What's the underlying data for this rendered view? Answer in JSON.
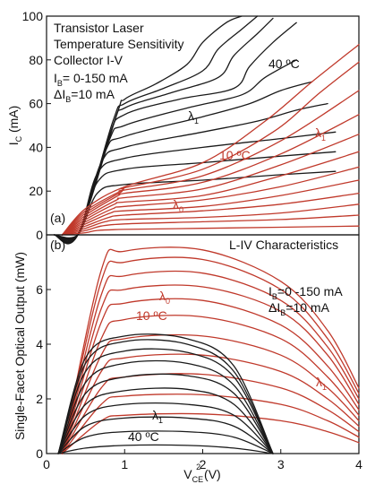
{
  "chart_data": [
    {
      "type": "line",
      "panel_label": "(a)",
      "title": "",
      "annotation_lines": [
        "Transistor Laser",
        "Temperature Sensitivity",
        "Collector I-V"
      ],
      "ib_range": {
        "main": "I",
        "sub": "B",
        "value": "= 0-150 mA"
      },
      "ib_step": {
        "main": "ΔI",
        "sub": "B",
        "value": "=10 mA"
      },
      "ylabel": {
        "main": "I",
        "sub": "C",
        "unit": " (mA)"
      },
      "xlim": [
        0,
        4
      ],
      "ylim": [
        0,
        100
      ],
      "yticks": [
        "0",
        "20",
        "40",
        "60",
        "80",
        "100"
      ],
      "labels": {
        "temp_hot": "40 ºC",
        "temp_cold": "10 ºC",
        "lambda_hot": {
          "main": "λ",
          "sub": "1"
        },
        "lambda_cold_1": {
          "main": "λ",
          "sub": "1"
        },
        "lambda_cold_0": {
          "main": "λ",
          "sub": "0"
        }
      },
      "series": [
        {
          "color": "#1a1a1a",
          "curves": [
            {
              "x": [
                0.1,
                0.4,
                0.65,
                1.0,
                2.0,
                3.0,
                3.7
              ],
              "y": [
                0,
                0,
                19,
                23,
                25,
                27.5,
                29
              ]
            },
            {
              "x": [
                0.1,
                0.4,
                0.65,
                1.0,
                2.0,
                3.0,
                3.7
              ],
              "y": [
                0,
                0,
                24,
                30,
                33,
                36,
                38
              ]
            },
            {
              "x": [
                0.1,
                0.4,
                0.65,
                1.0,
                2.0,
                3.0,
                3.7
              ],
              "y": [
                0,
                0,
                28,
                35,
                40,
                44,
                47
              ]
            },
            {
              "x": [
                0.1,
                0.4,
                0.7,
                1.0,
                2.0,
                2.7,
                3.2,
                3.6
              ],
              "y": [
                0,
                0,
                33,
                40,
                47,
                52,
                57,
                60
              ]
            },
            {
              "x": [
                0.1,
                0.4,
                0.75,
                1.0,
                2.0,
                2.6,
                3.0,
                3.4
              ],
              "y": [
                0,
                0,
                38,
                45,
                54,
                60,
                66,
                70
              ]
            },
            {
              "x": [
                0.1,
                0.4,
                0.8,
                1.0,
                1.8,
                2.5,
                2.8,
                3.2
              ],
              "y": [
                0,
                0,
                43,
                50,
                58,
                64,
                72,
                80
              ]
            },
            {
              "x": [
                0.1,
                0.4,
                0.8,
                1.0,
                1.7,
                2.4,
                2.6,
                2.9,
                3.2
              ],
              "y": [
                0,
                0,
                45,
                55,
                62,
                67,
                77,
                88,
                97
              ]
            },
            {
              "x": [
                0.1,
                0.4,
                0.85,
                1.0,
                1.6,
                2.2,
                2.4,
                2.7,
                2.9
              ],
              "y": [
                0,
                0,
                50,
                58,
                65,
                72,
                82,
                92,
                99
              ]
            },
            {
              "x": [
                0.1,
                0.4,
                0.85,
                1.0,
                1.5,
                2.0,
                2.2,
                2.5,
                2.7
              ],
              "y": [
                0,
                0,
                52,
                60,
                67,
                75,
                85,
                94,
                100
              ]
            },
            {
              "x": [
                0.1,
                0.4,
                0.9,
                1.0,
                1.4,
                1.8,
                2.0,
                2.3,
                2.5
              ],
              "y": [
                0,
                0,
                55,
                62,
                69,
                78,
                88,
                97,
                100
              ]
            }
          ]
        },
        {
          "color": "#c0392b",
          "curves": [
            {
              "x": [
                0.2,
                0.5,
                0.65,
                1.0,
                2.0,
                3.0,
                4.0
              ],
              "y": [
                0,
                1,
                2,
                2.5,
                3,
                3.5,
                4
              ]
            },
            {
              "x": [
                0.2,
                0.5,
                0.7,
                1.0,
                2.0,
                3.0,
                4.0
              ],
              "y": [
                0,
                2,
                4,
                5,
                6,
                7,
                9
              ]
            },
            {
              "x": [
                0.2,
                0.5,
                0.75,
                1.0,
                2.0,
                3.0,
                4.0
              ],
              "y": [
                0,
                3,
                6,
                7,
                8,
                10,
                14
              ]
            },
            {
              "x": [
                0.2,
                0.5,
                0.8,
                1.0,
                2.0,
                3.0,
                4.0
              ],
              "y": [
                0,
                4,
                8,
                9,
                11,
                14,
                19
              ]
            },
            {
              "x": [
                0.2,
                0.5,
                0.82,
                1.0,
                2.0,
                3.0,
                4.0
              ],
              "y": [
                0,
                5,
                10,
                11,
                13,
                18,
                25
              ]
            },
            {
              "x": [
                0.2,
                0.5,
                0.85,
                1.0,
                2.0,
                3.0,
                4.0
              ],
              "y": [
                0,
                6,
                12,
                13,
                16,
                22,
                31
              ]
            },
            {
              "x": [
                0.2,
                0.5,
                0.87,
                1.0,
                2.0,
                3.0,
                4.0
              ],
              "y": [
                0,
                7,
                14,
                15,
                18,
                27,
                38
              ]
            },
            {
              "x": [
                0.2,
                0.5,
                0.9,
                1.0,
                2.0,
                3.0,
                4.0
              ],
              "y": [
                0,
                8,
                16,
                17,
                21,
                32,
                46
              ]
            },
            {
              "x": [
                0.2,
                0.5,
                0.92,
                1.0,
                2.0,
                3.0,
                4.0
              ],
              "y": [
                0,
                9,
                18,
                19,
                24,
                37,
                55
              ]
            },
            {
              "x": [
                0.2,
                0.5,
                0.95,
                1.0,
                2.0,
                3.0,
                4.0
              ],
              "y": [
                0,
                10,
                19.5,
                20.5,
                27,
                43,
                66
              ]
            },
            {
              "x": [
                0.2,
                0.5,
                0.97,
                1.0,
                2.0,
                2.9,
                3.5,
                4.0
              ],
              "y": [
                0,
                11,
                20.5,
                21.5,
                30,
                47,
                65,
                79
              ]
            },
            {
              "x": [
                0.2,
                0.5,
                1.0,
                2.0,
                2.8,
                3.4,
                4.0
              ],
              "y": [
                0,
                12,
                22,
                33,
                52,
                70,
                87
              ]
            }
          ]
        }
      ]
    },
    {
      "type": "line",
      "panel_label": "(b)",
      "title": "L-IV Characteristics",
      "ylabel": "Single-Facet Optical Output (mW)",
      "xlabel": {
        "main": "V",
        "sub": "CE",
        "unit": " (V)",
        "sup": "2"
      },
      "ib_range": {
        "main": "I",
        "sub": "B",
        "value": "=0 -150 mA"
      },
      "ib_step": {
        "main": "ΔI",
        "sub": "B",
        "value": "=10 mA"
      },
      "xlim": [
        0,
        4
      ],
      "ylim": [
        0,
        8
      ],
      "xticks": [
        "0",
        "1",
        "2",
        "3",
        "4"
      ],
      "yticks": [
        "0",
        "2",
        "4",
        "6"
      ],
      "labels": {
        "lambda_cold_0": {
          "main": "λ",
          "sub": "0"
        },
        "temp_cold": "10 ºC",
        "lambda_cold_1": {
          "main": "λ",
          "sub": "1"
        },
        "lambda_hot": {
          "main": "λ",
          "sub": "1"
        },
        "temp_hot": "40 ºC"
      },
      "series": [
        {
          "color": "#c0392b",
          "curves": [
            {
              "x": [
                0.2,
                0.7,
                1.0,
                2.0,
                3.0,
                3.6,
                4.0
              ],
              "y": [
                0,
                1.2,
                1.4,
                1.45,
                1.2,
                0.8,
                0.4
              ]
            },
            {
              "x": [
                0.2,
                0.7,
                1.0,
                2.0,
                3.0,
                3.6,
                4.0
              ],
              "y": [
                0,
                1.8,
                2.1,
                2.15,
                1.8,
                1.2,
                0.6
              ]
            },
            {
              "x": [
                0.2,
                0.7,
                1.0,
                2.0,
                3.0,
                3.6,
                4.0
              ],
              "y": [
                0,
                2.4,
                2.8,
                2.9,
                2.4,
                1.6,
                0.8
              ]
            },
            {
              "x": [
                0.2,
                0.7,
                1.0,
                2.0,
                3.0,
                3.6,
                4.0
              ],
              "y": [
                0,
                3.0,
                3.5,
                3.6,
                3.0,
                2.0,
                1.0
              ]
            },
            {
              "x": [
                0.2,
                0.7,
                1.0,
                2.0,
                3.0,
                3.6,
                4.0
              ],
              "y": [
                0,
                3.6,
                4.2,
                4.3,
                3.6,
                2.4,
                1.2
              ]
            },
            {
              "x": [
                0.2,
                0.7,
                1.0,
                2.0,
                3.0,
                3.6,
                4.0
              ],
              "y": [
                0,
                4.2,
                4.9,
                5.0,
                4.2,
                2.8,
                1.4
              ]
            },
            {
              "x": [
                0.2,
                0.7,
                1.0,
                2.0,
                3.0,
                3.6,
                4.0
              ],
              "y": [
                0,
                4.8,
                5.5,
                5.6,
                4.7,
                3.2,
                1.6
              ]
            },
            {
              "x": [
                0.2,
                0.7,
                1.0,
                2.0,
                3.0,
                3.6,
                4.0
              ],
              "y": [
                0,
                5.3,
                6.0,
                6.1,
                5.2,
                3.6,
                1.8
              ]
            },
            {
              "x": [
                0.2,
                0.7,
                1.0,
                2.0,
                3.0,
                3.6,
                4.0
              ],
              "y": [
                0,
                5.8,
                6.5,
                6.6,
                5.6,
                3.9,
                2.0
              ]
            },
            {
              "x": [
                0.2,
                0.7,
                1.0,
                2.0,
                3.0,
                3.6,
                4.0
              ],
              "y": [
                0,
                6.3,
                7.0,
                7.1,
                6.0,
                4.2,
                2.2
              ]
            },
            {
              "x": [
                0.2,
                0.7,
                1.0,
                2.0,
                3.0,
                3.6,
                4.0
              ],
              "y": [
                0,
                6.7,
                7.4,
                7.45,
                6.3,
                4.5,
                2.4
              ]
            }
          ]
        },
        {
          "color": "#1a1a1a",
          "curves": [
            {
              "x": [
                0.15,
                0.5,
                1.0,
                1.8,
                2.4,
                2.9
              ],
              "y": [
                0,
                0.2,
                0.3,
                0.3,
                0.2,
                0
              ]
            },
            {
              "x": [
                0.15,
                0.5,
                1.0,
                1.8,
                2.4,
                2.9
              ],
              "y": [
                0,
                0.6,
                0.8,
                0.8,
                0.6,
                0
              ]
            },
            {
              "x": [
                0.15,
                0.5,
                1.0,
                1.8,
                2.4,
                2.9
              ],
              "y": [
                0,
                1.0,
                1.3,
                1.3,
                1.0,
                0
              ]
            },
            {
              "x": [
                0.15,
                0.5,
                1.0,
                1.8,
                2.4,
                2.9
              ],
              "y": [
                0,
                1.4,
                1.8,
                1.8,
                1.4,
                0
              ]
            },
            {
              "x": [
                0.15,
                0.5,
                1.0,
                1.8,
                2.4,
                2.9
              ],
              "y": [
                0,
                1.8,
                2.3,
                2.35,
                1.8,
                0
              ]
            },
            {
              "x": [
                0.15,
                0.5,
                1.0,
                1.8,
                2.4,
                2.9
              ],
              "y": [
                0,
                2.2,
                2.8,
                2.85,
                2.2,
                0
              ]
            },
            {
              "x": [
                0.15,
                0.5,
                1.0,
                1.8,
                2.4,
                2.9
              ],
              "y": [
                0,
                2.6,
                3.3,
                3.3,
                2.5,
                0
              ]
            },
            {
              "x": [
                0.15,
                0.5,
                1.0,
                1.8,
                2.4,
                2.9
              ],
              "y": [
                0,
                3.0,
                3.75,
                3.7,
                2.8,
                0
              ]
            },
            {
              "x": [
                0.15,
                0.5,
                1.0,
                1.8,
                2.4,
                2.9
              ],
              "y": [
                0,
                3.3,
                4.1,
                4.0,
                3.0,
                0
              ]
            },
            {
              "x": [
                0.15,
                0.5,
                1.0,
                1.8,
                2.4,
                2.9
              ],
              "y": [
                0,
                3.5,
                4.3,
                4.2,
                3.2,
                0
              ]
            }
          ]
        }
      ]
    }
  ]
}
